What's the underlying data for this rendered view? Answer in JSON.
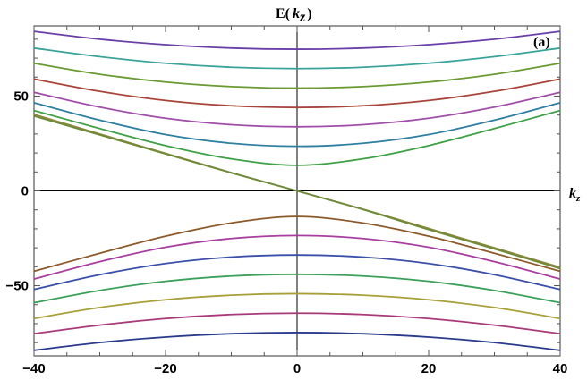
{
  "chart_data": {
    "type": "line",
    "panel_label": "(a)",
    "y_title": "E",
    "y_title_paren_open": "(",
    "y_title_var": "k",
    "y_title_sub": "z",
    "y_title_paren_close": ")",
    "x_title_var": "k",
    "x_title_sub": "z",
    "xlim": [
      -40,
      40
    ],
    "ylim": [
      -87,
      87
    ],
    "x_ticks": [
      -40,
      -20,
      0,
      20,
      40
    ],
    "x_tick_labels": [
      "−40",
      "−20",
      "0",
      "20",
      "40"
    ],
    "y_ticks": [
      -50,
      0,
      50
    ],
    "y_tick_labels": [
      "−50",
      "0",
      "50"
    ],
    "grid": false,
    "x": [
      -40,
      -30,
      -20,
      -10,
      0,
      10,
      20,
      30,
      40
    ],
    "series": [
      {
        "color": "#6a3fa8",
        "values": [
          84.1,
          80.0,
          77.1,
          75.3,
          74.7,
          75.3,
          77.1,
          80.0,
          84.1
        ]
      },
      {
        "color": "#3aa39a",
        "values": [
          75.3,
          70.8,
          67.3,
          65.2,
          64.5,
          65.2,
          67.3,
          70.8,
          75.3
        ]
      },
      {
        "color": "#6a9a32",
        "values": [
          67.3,
          61.5,
          57.4,
          55.0,
          54.2,
          55.0,
          57.4,
          61.5,
          67.3
        ]
      },
      {
        "color": "#a8453a",
        "values": [
          59.0,
          52.5,
          47.7,
          44.9,
          44.0,
          44.9,
          47.7,
          52.5,
          59.0
        ]
      },
      {
        "color": "#a04fa8",
        "values": [
          52.0,
          44.2,
          38.3,
          34.9,
          33.8,
          34.9,
          38.3,
          44.2,
          52.0
        ]
      },
      {
        "color": "#2f7fa0",
        "values": [
          46.5,
          37.3,
          29.7,
          25.1,
          23.5,
          25.1,
          29.7,
          37.3,
          46.5
        ]
      },
      {
        "color": "#3fa046",
        "values": [
          42.4,
          32.9,
          23.9,
          16.9,
          13.5,
          16.9,
          23.9,
          32.9,
          42.4
        ]
      },
      {
        "color": "#8c8a3a",
        "values": [
          40.3,
          30.0,
          19.8,
          9.6,
          0.0,
          -9.6,
          -19.8,
          -30.0,
          -40.3
        ]
      },
      {
        "color": "#6e8a3a",
        "values": [
          39.5,
          29.5,
          19.5,
          9.5,
          0.0,
          -9.8,
          -20.4,
          -30.6,
          -41.0
        ]
      },
      {
        "color": "#8c5a2a",
        "values": [
          -42.4,
          -32.9,
          -23.9,
          -16.9,
          -13.5,
          -16.9,
          -23.9,
          -32.9,
          -42.4
        ]
      },
      {
        "color": "#a83fa0",
        "values": [
          -46.5,
          -37.3,
          -29.7,
          -25.1,
          -23.5,
          -25.1,
          -29.7,
          -37.3,
          -46.5
        ]
      },
      {
        "color": "#3a4fa8",
        "values": [
          -52.0,
          -44.2,
          -38.3,
          -34.9,
          -33.8,
          -34.9,
          -38.3,
          -44.2,
          -52.0
        ]
      },
      {
        "color": "#3aa05a",
        "values": [
          -59.0,
          -52.5,
          -47.7,
          -44.9,
          -44.0,
          -44.9,
          -47.7,
          -52.5,
          -59.0
        ]
      },
      {
        "color": "#a8a03a",
        "values": [
          -67.3,
          -61.5,
          -57.4,
          -55.0,
          -54.2,
          -55.0,
          -57.4,
          -61.5,
          -67.3
        ]
      },
      {
        "color": "#a83a7a",
        "values": [
          -75.3,
          -70.8,
          -67.3,
          -65.2,
          -64.5,
          -65.2,
          -67.3,
          -70.8,
          -75.3
        ]
      },
      {
        "color": "#2a3a8c",
        "values": [
          -84.1,
          -80.0,
          -77.1,
          -75.3,
          -74.7,
          -75.3,
          -77.1,
          -80.0,
          -84.1
        ]
      }
    ]
  }
}
